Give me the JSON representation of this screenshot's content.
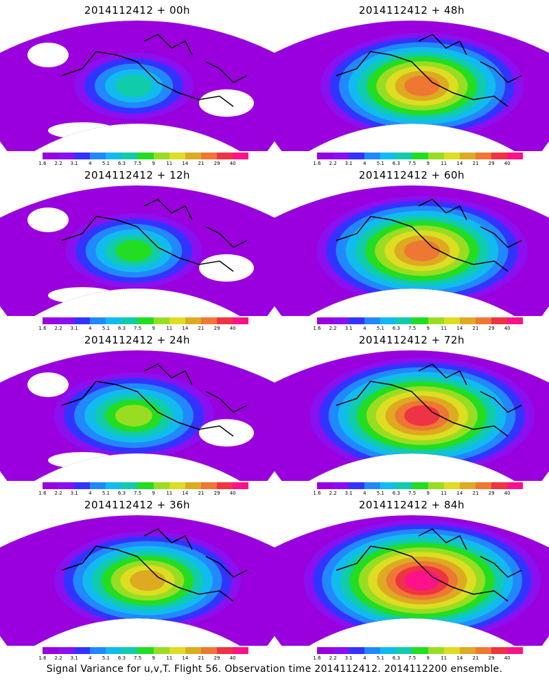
{
  "panels": [
    {
      "title": "2014112412 + 00h"
    },
    {
      "title": "2014112412 + 48h"
    },
    {
      "title": "2014112412 + 12h"
    },
    {
      "title": "2014112412 + 60h"
    },
    {
      "title": "2014112412 + 24h"
    },
    {
      "title": "2014112412 + 72h"
    },
    {
      "title": "2014112412 + 36h"
    },
    {
      "title": "2014112412 + 84h"
    }
  ],
  "colorbar": {
    "labels": [
      "1.6",
      "2.2",
      "3.1",
      "4",
      "5.1",
      "6.3",
      "7.5",
      "9",
      "11",
      "14",
      "21",
      "29",
      "40"
    ],
    "colors": [
      "#9900dd",
      "#8a10f0",
      "#3333ff",
      "#2288ff",
      "#11bbee",
      "#11ccaa",
      "#22dd22",
      "#99dd22",
      "#dddd22",
      "#ddaa22",
      "#ee7733",
      "#ee3344",
      "#ff1188"
    ]
  },
  "footer": "Signal Variance for u,v,T. Flight 56. Observation time 2014112412. 2014112200 ensemble."
}
